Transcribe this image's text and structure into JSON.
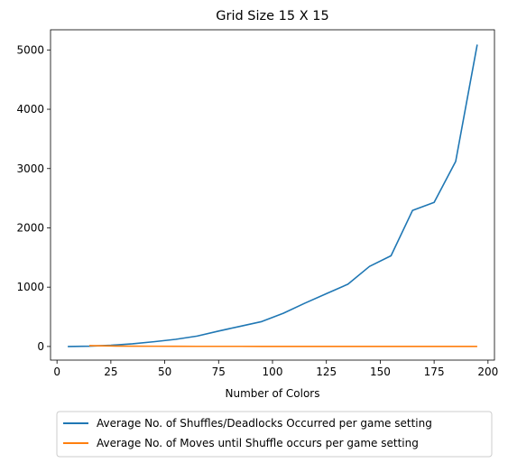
{
  "chart_data": {
    "type": "line",
    "title": "Grid Size 15 X 15",
    "xlabel": "Number of Colors",
    "ylabel": "",
    "xlim": [
      -3,
      203
    ],
    "ylim": [
      -230,
      5340
    ],
    "xticks": [
      0,
      25,
      50,
      75,
      100,
      125,
      150,
      175,
      200
    ],
    "yticks": [
      0,
      1000,
      2000,
      3000,
      4000,
      5000
    ],
    "grid": false,
    "legend_position": "bottom-center",
    "series": [
      {
        "name": "Average No. of Shuffles/Deadlocks Occurred per game setting",
        "color": "#1f77b4",
        "x": [
          5,
          15,
          25,
          35,
          45,
          55,
          65,
          75,
          85,
          95,
          105,
          115,
          125,
          135,
          145,
          155,
          165,
          175,
          185,
          195
        ],
        "y": [
          0,
          5,
          20,
          45,
          80,
          120,
          175,
          260,
          340,
          420,
          560,
          730,
          890,
          1050,
          1350,
          1530,
          2295,
          2430,
          3120,
          5090
        ]
      },
      {
        "name": "Average No. of Moves until Shuffle occurs per game setting",
        "color": "#ff7f0e",
        "x": [
          15,
          25,
          35,
          45,
          55,
          65,
          75,
          85,
          95,
          105,
          115,
          125,
          135,
          145,
          155,
          165,
          175,
          185,
          195
        ],
        "y": [
          15,
          8,
          5,
          4,
          3,
          2,
          2,
          2,
          1,
          1,
          1,
          1,
          1,
          1,
          1,
          1,
          1,
          1,
          1
        ]
      }
    ]
  }
}
